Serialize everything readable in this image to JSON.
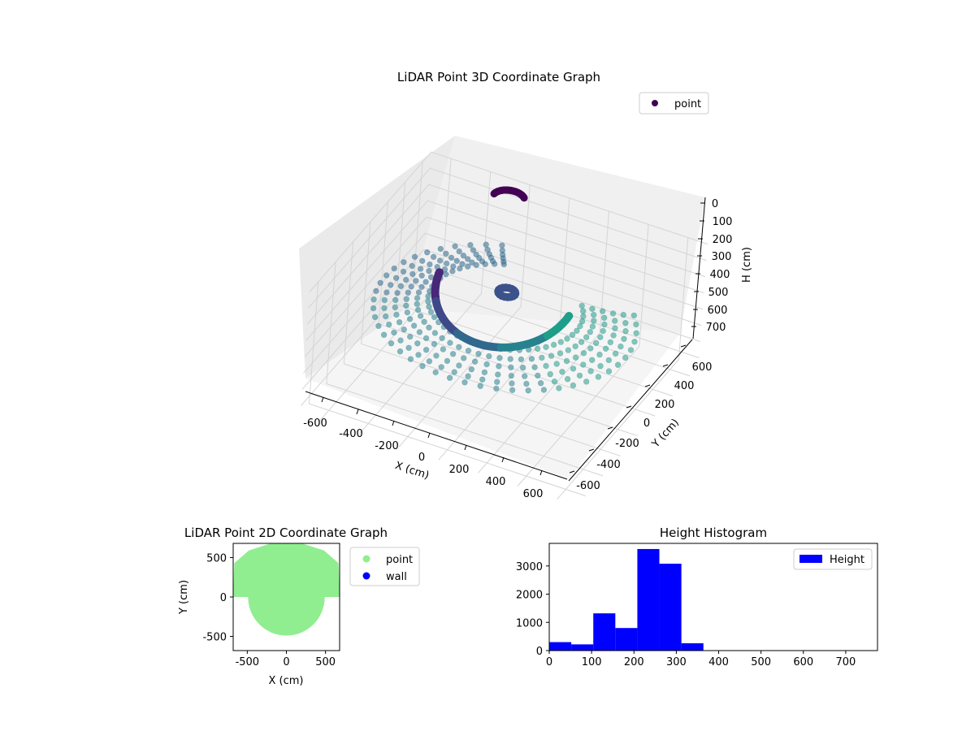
{
  "chart_data": [
    {
      "type": "scatter",
      "title": "LiDAR Point 3D Coordinate Graph",
      "xlabel": "X (cm)",
      "ylabel": "Y (cm)",
      "zlabel": "H (cm)",
      "xlim": [
        -700,
        700
      ],
      "ylim": [
        -700,
        700
      ],
      "zlim": [
        0,
        750
      ],
      "z_inverted": true,
      "x_ticks": [
        -600,
        -400,
        -200,
        0,
        200,
        400,
        600
      ],
      "y_ticks": [
        -600,
        -400,
        -200,
        0,
        200,
        400,
        600
      ],
      "z_ticks": [
        0,
        100,
        200,
        300,
        400,
        500,
        600,
        700
      ],
      "legend": [
        "point"
      ],
      "legend_position": "top-right",
      "colormap": "viridis",
      "point_color": "#440154",
      "grid": true,
      "series": [
        {
          "name": "point",
          "rings": [
            {
              "r": 360,
              "a0": 115,
              "a1": 395,
              "h": 240
            },
            {
              "r": 410,
              "a0": 115,
              "a1": 395,
              "h": 260
            },
            {
              "r": 460,
              "a0": 115,
              "a1": 395,
              "h": 275
            },
            {
              "r": 510,
              "a0": 115,
              "a1": 395,
              "h": 290
            },
            {
              "r": 560,
              "a0": 115,
              "a1": 395,
              "h": 300
            },
            {
              "r": 610,
              "a0": 115,
              "a1": 395,
              "h": 305
            }
          ],
          "inner_ring": {
            "r": 330,
            "a0": 185,
            "a1": 355,
            "h0": 130,
            "h1": 260
          },
          "hub": {
            "r": 40,
            "h": 150
          },
          "top_arc": {
            "r": 75,
            "a0": 40,
            "a1": 180,
            "h": 0
          }
        }
      ]
    },
    {
      "type": "scatter",
      "title": "LiDAR Point 2D Coordinate Graph",
      "xlabel": "X (cm)",
      "ylabel": "Y (cm)",
      "xlim": [
        -680,
        680
      ],
      "ylim": [
        -680,
        680
      ],
      "x_ticks": [
        -500,
        0,
        500
      ],
      "y_ticks": [
        -500,
        0,
        500
      ],
      "series": [
        {
          "name": "point",
          "color": "#90ee90"
        },
        {
          "name": "wall",
          "color": "#0000ff"
        }
      ],
      "legend_position": "outside-right",
      "shape": {
        "disk_center": [
          0,
          0
        ],
        "disk_radius": 490,
        "top_cap": [
          [
            -680,
            0
          ],
          [
            -665,
            430
          ],
          [
            -480,
            590
          ],
          [
            -200,
            680
          ],
          [
            200,
            680
          ],
          [
            480,
            590
          ],
          [
            665,
            430
          ],
          [
            680,
            0
          ]
        ]
      }
    },
    {
      "type": "bar",
      "title": "Height Histogram",
      "xlabel": "",
      "ylabel": "",
      "xlim": [
        0,
        775
      ],
      "ylim": [
        0,
        3800
      ],
      "x_ticks": [
        0,
        100,
        200,
        300,
        400,
        500,
        600,
        700
      ],
      "y_ticks": [
        0,
        1000,
        2000,
        3000
      ],
      "bin_edges": [
        0,
        52,
        104,
        156,
        208,
        260,
        312,
        364
      ],
      "values": [
        300,
        220,
        1320,
        800,
        3600,
        3080,
        260
      ],
      "color": "#0000ff",
      "legend": [
        "Height"
      ],
      "legend_position": "upper right"
    }
  ]
}
